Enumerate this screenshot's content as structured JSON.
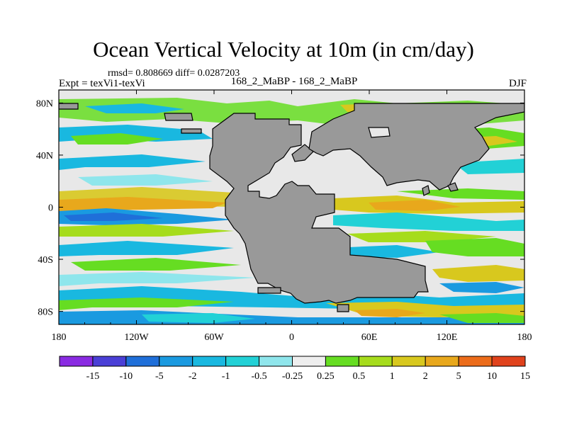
{
  "title": "Ocean Vertical Velocity at 10m (in cm/day)",
  "stats": "rmsd= 0.808669 diff= 0.0287203",
  "expt_label": "Expt = texVi1-texVi",
  "runs_label": "168_2_MaBP - 168_2_MaBP",
  "season": "DJF",
  "lon_ticks": [
    "180",
    "120W",
    "60W",
    "0",
    "60E",
    "120E",
    "180"
  ],
  "lat_ticks": [
    "80N",
    "40N",
    "0",
    "40S",
    "80S"
  ],
  "colorbar": {
    "labels": [
      "-15",
      "-10",
      "-5",
      "-2",
      "-1",
      "-0.5",
      "-0.25",
      "0.25",
      "0.5",
      "1",
      "2",
      "5",
      "10",
      "15"
    ],
    "colors": [
      "#8a2be2",
      "#4a3fd6",
      "#1f6fd9",
      "#1a9ae0",
      "#19b8e0",
      "#22d1d6",
      "#8fe6ec",
      "#eeeeee",
      "#66dd22",
      "#a6dc1c",
      "#d8c81e",
      "#e8a81c",
      "#ec6c1a",
      "#e0421c"
    ]
  },
  "colors": {
    "land": "#999999",
    "ocean_neutral": "#e8e8e8"
  }
}
